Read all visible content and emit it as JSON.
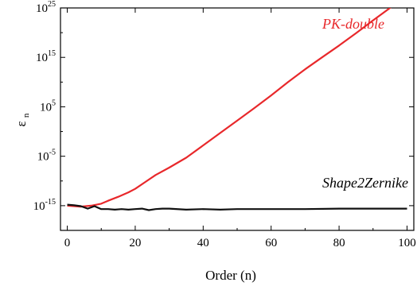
{
  "chart_data": {
    "type": "line",
    "xlabel": "Order (n)",
    "ylabel_main": "ε",
    "ylabel_sub": "n",
    "xlim": [
      -2,
      102
    ],
    "ylim_log10": [
      -20,
      25
    ],
    "xticks": [
      0,
      20,
      40,
      60,
      80,
      100
    ],
    "xtick_labels": [
      "0",
      "20",
      "40",
      "60",
      "80",
      "100"
    ],
    "yticks": [
      {
        "exp": 25,
        "base": "10",
        "sup": "25"
      },
      {
        "exp": 15,
        "base": "10",
        "sup": "15"
      },
      {
        "exp": 5,
        "base": "10",
        "sup": "5"
      },
      {
        "exp": -5,
        "base": "10",
        "sup": "-5"
      },
      {
        "exp": -15,
        "base": "10",
        "sup": "-15"
      }
    ],
    "series": [
      {
        "name": "PK-double",
        "color": "#e8282b",
        "x": [
          0,
          4,
          7,
          10,
          12,
          15,
          18,
          20,
          23,
          26,
          30,
          35,
          40,
          45,
          50,
          55,
          60,
          65,
          70,
          75,
          80,
          85,
          90,
          95,
          100
        ],
        "log10_y": [
          -15.0,
          -15.2,
          -15.0,
          -14.6,
          -14.0,
          -13.2,
          -12.3,
          -11.6,
          -10.2,
          -8.8,
          -7.3,
          -5.3,
          -2.8,
          -0.3,
          2.2,
          4.7,
          7.3,
          10.0,
          12.6,
          15.0,
          17.4,
          19.9,
          22.5,
          25.0,
          27.8
        ]
      },
      {
        "name": "Shape2Zernike",
        "color": "#111111",
        "x": [
          0,
          2,
          4,
          6,
          8,
          10,
          12,
          14,
          16,
          18,
          20,
          22,
          24,
          26,
          28,
          30,
          35,
          40,
          45,
          50,
          60,
          70,
          80,
          90,
          100
        ],
        "log10_y": [
          -14.8,
          -14.9,
          -15.1,
          -15.6,
          -15.1,
          -15.7,
          -15.7,
          -15.8,
          -15.7,
          -15.8,
          -15.7,
          -15.6,
          -15.9,
          -15.7,
          -15.6,
          -15.6,
          -15.8,
          -15.7,
          -15.8,
          -15.7,
          -15.7,
          -15.7,
          -15.6,
          -15.6,
          -15.6
        ]
      }
    ],
    "annotations": [
      {
        "text": "PK-double",
        "color": "#e8282b"
      },
      {
        "text": "Shape2Zernike",
        "color": "#000000"
      }
    ],
    "grid": false
  }
}
